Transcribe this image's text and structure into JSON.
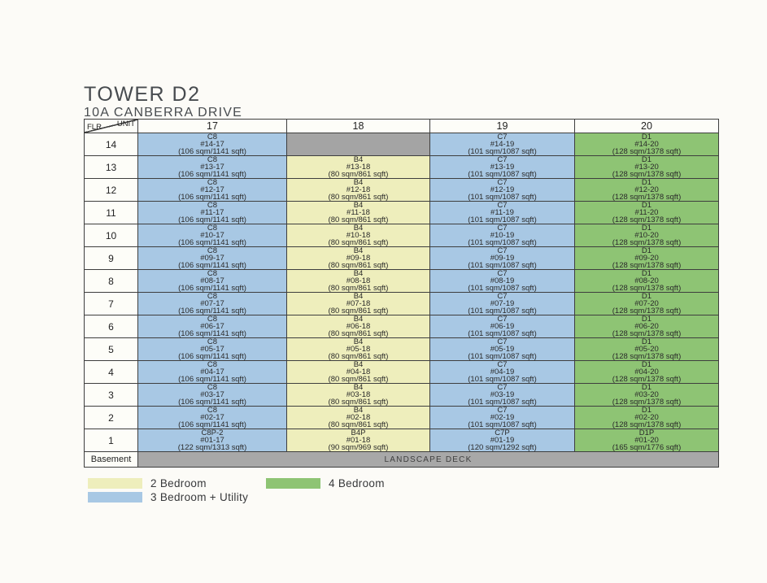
{
  "page": {
    "title": "TOWER D2",
    "subtitle": "10A CANBERRA DRIVE"
  },
  "chart_data": {
    "type": "table",
    "title": "TOWER D2",
    "subtitle": "10A CANBERRA DRIVE",
    "corner": {
      "top_label": "UNIT",
      "bottom_label": "FLR"
    },
    "columns": [
      "17",
      "18",
      "19",
      "20"
    ],
    "basement": {
      "floor_label": "Basement",
      "deck_label": "LANDSCAPE DECK"
    },
    "colors": {
      "2br": "#eeeebc",
      "3br": "#a8c8e4",
      "4br": "#8ec474",
      "empty": "#a4a4a4",
      "deck": "#a8a8a8",
      "cell_bg": "#fdfdf8"
    },
    "legend": [
      {
        "label": "2 Bedroom",
        "category": "2br",
        "color": "#eeeebc"
      },
      {
        "label": "3 Bedroom + Utility",
        "category": "3br",
        "color": "#a8c8e4"
      },
      {
        "label": "4 Bedroom",
        "category": "4br",
        "color": "#8ec474"
      }
    ],
    "rows": [
      {
        "floor": "14",
        "cells": [
          {
            "type": "C8",
            "unit": "#14-17",
            "area": "(106 sqm/1141 sqft)",
            "category": "3br"
          },
          {
            "type": "",
            "unit": "",
            "area": "",
            "category": "empty"
          },
          {
            "type": "C7",
            "unit": "#14-19",
            "area": "(101 sqm/1087 sqft)",
            "category": "3br"
          },
          {
            "type": "D1",
            "unit": "#14-20",
            "area": "(128 sqm/1378 sqft)",
            "category": "4br"
          }
        ]
      },
      {
        "floor": "13",
        "cells": [
          {
            "type": "C8",
            "unit": "#13-17",
            "area": "(106 sqm/1141 sqft)",
            "category": "3br"
          },
          {
            "type": "B4",
            "unit": "#13-18",
            "area": "(80 sqm/861 sqft)",
            "category": "2br"
          },
          {
            "type": "C7",
            "unit": "#13-19",
            "area": "(101 sqm/1087 sqft)",
            "category": "3br"
          },
          {
            "type": "D1",
            "unit": "#13-20",
            "area": "(128 sqm/1378 sqft)",
            "category": "4br"
          }
        ]
      },
      {
        "floor": "12",
        "cells": [
          {
            "type": "C8",
            "unit": "#12-17",
            "area": "(106 sqm/1141 sqft)",
            "category": "3br"
          },
          {
            "type": "B4",
            "unit": "#12-18",
            "area": "(80 sqm/861 sqft)",
            "category": "2br"
          },
          {
            "type": "C7",
            "unit": "#12-19",
            "area": "(101 sqm/1087 sqft)",
            "category": "3br"
          },
          {
            "type": "D1",
            "unit": "#12-20",
            "area": "(128 sqm/1378 sqft)",
            "category": "4br"
          }
        ]
      },
      {
        "floor": "11",
        "cells": [
          {
            "type": "C8",
            "unit": "#11-17",
            "area": "(106 sqm/1141 sqft)",
            "category": "3br"
          },
          {
            "type": "B4",
            "unit": "#11-18",
            "area": "(80 sqm/861 sqft)",
            "category": "2br"
          },
          {
            "type": "C7",
            "unit": "#11-19",
            "area": "(101 sqm/1087 sqft)",
            "category": "3br"
          },
          {
            "type": "D1",
            "unit": "#11-20",
            "area": "(128 sqm/1378 sqft)",
            "category": "4br"
          }
        ]
      },
      {
        "floor": "10",
        "cells": [
          {
            "type": "C8",
            "unit": "#10-17",
            "area": "(106 sqm/1141 sqft)",
            "category": "3br"
          },
          {
            "type": "B4",
            "unit": "#10-18",
            "area": "(80 sqm/861 sqft)",
            "category": "2br"
          },
          {
            "type": "C7",
            "unit": "#10-19",
            "area": "(101 sqm/1087 sqft)",
            "category": "3br"
          },
          {
            "type": "D1",
            "unit": "#10-20",
            "area": "(128 sqm/1378 sqft)",
            "category": "4br"
          }
        ]
      },
      {
        "floor": "9",
        "cells": [
          {
            "type": "C8",
            "unit": "#09-17",
            "area": "(106 sqm/1141 sqft)",
            "category": "3br"
          },
          {
            "type": "B4",
            "unit": "#09-18",
            "area": "(80 sqm/861 sqft)",
            "category": "2br"
          },
          {
            "type": "C7",
            "unit": "#09-19",
            "area": "(101 sqm/1087 sqft)",
            "category": "3br"
          },
          {
            "type": "D1",
            "unit": "#09-20",
            "area": "(128 sqm/1378 sqft)",
            "category": "4br"
          }
        ]
      },
      {
        "floor": "8",
        "cells": [
          {
            "type": "C8",
            "unit": "#08-17",
            "area": "(106 sqm/1141 sqft)",
            "category": "3br"
          },
          {
            "type": "B4",
            "unit": "#08-18",
            "area": "(80 sqm/861 sqft)",
            "category": "2br"
          },
          {
            "type": "C7",
            "unit": "#08-19",
            "area": "(101 sqm/1087 sqft)",
            "category": "3br"
          },
          {
            "type": "D1",
            "unit": "#08-20",
            "area": "(128 sqm/1378 sqft)",
            "category": "4br"
          }
        ]
      },
      {
        "floor": "7",
        "cells": [
          {
            "type": "C8",
            "unit": "#07-17",
            "area": "(106 sqm/1141 sqft)",
            "category": "3br"
          },
          {
            "type": "B4",
            "unit": "#07-18",
            "area": "(80 sqm/861 sqft)",
            "category": "2br"
          },
          {
            "type": "C7",
            "unit": "#07-19",
            "area": "(101 sqm/1087 sqft)",
            "category": "3br"
          },
          {
            "type": "D1",
            "unit": "#07-20",
            "area": "(128 sqm/1378 sqft)",
            "category": "4br"
          }
        ]
      },
      {
        "floor": "6",
        "cells": [
          {
            "type": "C8",
            "unit": "#06-17",
            "area": "(106 sqm/1141 sqft)",
            "category": "3br"
          },
          {
            "type": "B4",
            "unit": "#06-18",
            "area": "(80 sqm/861 sqft)",
            "category": "2br"
          },
          {
            "type": "C7",
            "unit": "#06-19",
            "area": "(101 sqm/1087 sqft)",
            "category": "3br"
          },
          {
            "type": "D1",
            "unit": "#06-20",
            "area": "(128 sqm/1378 sqft)",
            "category": "4br"
          }
        ]
      },
      {
        "floor": "5",
        "cells": [
          {
            "type": "C8",
            "unit": "#05-17",
            "area": "(106 sqm/1141 sqft)",
            "category": "3br"
          },
          {
            "type": "B4",
            "unit": "#05-18",
            "area": "(80 sqm/861 sqft)",
            "category": "2br"
          },
          {
            "type": "C7",
            "unit": "#05-19",
            "area": "(101 sqm/1087 sqft)",
            "category": "3br"
          },
          {
            "type": "D1",
            "unit": "#05-20",
            "area": "(128 sqm/1378 sqft)",
            "category": "4br"
          }
        ]
      },
      {
        "floor": "4",
        "cells": [
          {
            "type": "C8",
            "unit": "#04-17",
            "area": "(106 sqm/1141 sqft)",
            "category": "3br"
          },
          {
            "type": "B4",
            "unit": "#04-18",
            "area": "(80 sqm/861 sqft)",
            "category": "2br"
          },
          {
            "type": "C7",
            "unit": "#04-19",
            "area": "(101 sqm/1087 sqft)",
            "category": "3br"
          },
          {
            "type": "D1",
            "unit": "#04-20",
            "area": "(128 sqm/1378 sqft)",
            "category": "4br"
          }
        ]
      },
      {
        "floor": "3",
        "cells": [
          {
            "type": "C8",
            "unit": "#03-17",
            "area": "(106 sqm/1141 sqft)",
            "category": "3br"
          },
          {
            "type": "B4",
            "unit": "#03-18",
            "area": "(80 sqm/861 sqft)",
            "category": "2br"
          },
          {
            "type": "C7",
            "unit": "#03-19",
            "area": "(101 sqm/1087 sqft)",
            "category": "3br"
          },
          {
            "type": "D1",
            "unit": "#03-20",
            "area": "(128 sqm/1378 sqft)",
            "category": "4br"
          }
        ]
      },
      {
        "floor": "2",
        "cells": [
          {
            "type": "C8",
            "unit": "#02-17",
            "area": "(106 sqm/1141 sqft)",
            "category": "3br"
          },
          {
            "type": "B4",
            "unit": "#02-18",
            "area": "(80 sqm/861 sqft)",
            "category": "2br"
          },
          {
            "type": "C7",
            "unit": "#02-19",
            "area": "(101 sqm/1087 sqft)",
            "category": "3br"
          },
          {
            "type": "D1",
            "unit": "#02-20",
            "area": "(128 sqm/1378 sqft)",
            "category": "4br"
          }
        ]
      },
      {
        "floor": "1",
        "cells": [
          {
            "type": "C8P-2",
            "unit": "#01-17",
            "area": "(122 sqm/1313 sqft)",
            "category": "3br"
          },
          {
            "type": "B4P",
            "unit": "#01-18",
            "area": "(90 sqm/969 sqft)",
            "category": "2br"
          },
          {
            "type": "C7P",
            "unit": "#01-19",
            "area": "(120 sqm/1292 sqft)",
            "category": "3br"
          },
          {
            "type": "D1P",
            "unit": "#01-20",
            "area": "(165 sqm/1776 sqft)",
            "category": "4br"
          }
        ]
      }
    ]
  }
}
